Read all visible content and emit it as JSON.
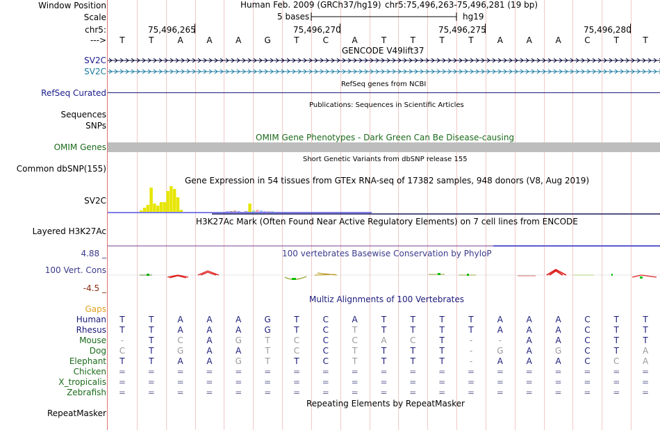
{
  "labels": {
    "window_position": "Window Position",
    "scale": "Scale",
    "chrom": "chr5:",
    "strand_arrow": "--->",
    "sv2c_1": "SV2C",
    "sv2c_2": "SV2C",
    "refseq_curated": "RefSeq Curated",
    "sequences": "Sequences",
    "snps": "SNPs",
    "omim_genes": "OMIM Genes",
    "common_dbsnp": "Common dbSNP(155)",
    "sv2c_gtex": "SV2C",
    "layered_h3k27ac": "Layered H3K27Ac",
    "phylop_max": "4.88 _",
    "vert_cons": "100 Vert. Cons",
    "phylop_min": "-4.5 _",
    "gaps": "Gaps",
    "repeatmasker": "RepeatMasker"
  },
  "header": {
    "assembly": "Human Feb. 2009 (GRCh37/hg19)",
    "position": "chr5:75,496,263-75,496,281 (19 bp)",
    "scale_text": "5 bases",
    "scale_db": "hg19",
    "ticks": [
      "75,496,265",
      "75,496,270",
      "75,496,275",
      "75,496,280"
    ]
  },
  "sequence": [
    "T",
    "T",
    "A",
    "A",
    "A",
    "G",
    "T",
    "C",
    "A",
    "T",
    "T",
    "T",
    "T",
    "A",
    "A",
    "A",
    "C",
    "T",
    "T"
  ],
  "tracks": {
    "gencode": "GENCODE V49lift37",
    "refseq": "RefSeq genes from NCBI",
    "publications": "Publications: Sequences in Scientific Articles",
    "omim": "OMIM Gene Phenotypes - Dark Green Can Be Disease-causing",
    "dbsnp": "Short Genetic Variants from dbSNP release 155",
    "gtex": "Gene Expression in 54 tissues from GTEx RNA-seq of 17382 samples, 948 donors (V8, Aug 2019)",
    "h3k27ac": "H3K27Ac Mark (Often Found Near Active Regulatory Elements) on 7 cell lines from ENCODE",
    "phylop": "100 vertebrates Basewise Conservation by PhyloP",
    "multiz": "Multiz Alignments of 100 Vertebrates",
    "repeat": "Repeating Elements by RepeatMasker"
  },
  "alignments": [
    {
      "species": "Human",
      "bases": [
        "T",
        "T",
        "A",
        "A",
        "A",
        "G",
        "T",
        "C",
        "A",
        "T",
        "T",
        "T",
        "T",
        "A",
        "A",
        "A",
        "C",
        "T",
        "T"
      ]
    },
    {
      "species": "Rhesus",
      "bases": [
        "T",
        "T",
        "A",
        "A",
        "A",
        "G",
        "T",
        "C",
        "T",
        "T",
        "T",
        "T",
        "T",
        "A",
        "A",
        "A",
        "C",
        "T",
        "T"
      ]
    },
    {
      "species": "Mouse",
      "bases": [
        "-",
        "T",
        "C",
        "A",
        "G",
        "T",
        "C",
        "C",
        "C",
        "A",
        "C",
        "T",
        "-",
        "-",
        "A",
        "A",
        "C",
        "T",
        "T"
      ]
    },
    {
      "species": "Dog",
      "bases": [
        "C",
        "T",
        "G",
        "A",
        "A",
        "T",
        "C",
        "C",
        "T",
        "T",
        "T",
        "T",
        "-",
        "G",
        "A",
        "G",
        "C",
        "T",
        "A"
      ]
    },
    {
      "species": "Elephant",
      "bases": [
        "T",
        "T",
        "A",
        "A",
        "G",
        "T",
        "T",
        "C",
        "T",
        "T",
        "T",
        "T",
        "-",
        "A",
        "A",
        "A",
        "C",
        "C",
        "A"
      ]
    },
    {
      "species": "Chicken",
      "bases": [
        "=",
        "=",
        "=",
        "=",
        "=",
        "=",
        "=",
        "=",
        "=",
        "=",
        "=",
        "=",
        "=",
        "=",
        "=",
        "=",
        "=",
        "=",
        "="
      ]
    },
    {
      "species": "X_tropicalis",
      "bases": [
        "=",
        "=",
        "=",
        "=",
        "=",
        "=",
        "=",
        "=",
        "=",
        "=",
        "=",
        "=",
        "=",
        "=",
        "=",
        "=",
        "=",
        "=",
        "="
      ]
    },
    {
      "species": "Zebrafish",
      "bases": [
        "=",
        "=",
        "=",
        "=",
        "=",
        "=",
        "=",
        "=",
        "=",
        "=",
        "=",
        "=",
        "=",
        "=",
        "=",
        "=",
        "=",
        "=",
        "="
      ]
    }
  ],
  "gtex_values": [
    2,
    6,
    10,
    35,
    12,
    9,
    14,
    14,
    30,
    37,
    33,
    21,
    3
  ],
  "gtex_values2": [
    1,
    1,
    2,
    1,
    0,
    1,
    12,
    2,
    3,
    2,
    1,
    1,
    1
  ]
}
